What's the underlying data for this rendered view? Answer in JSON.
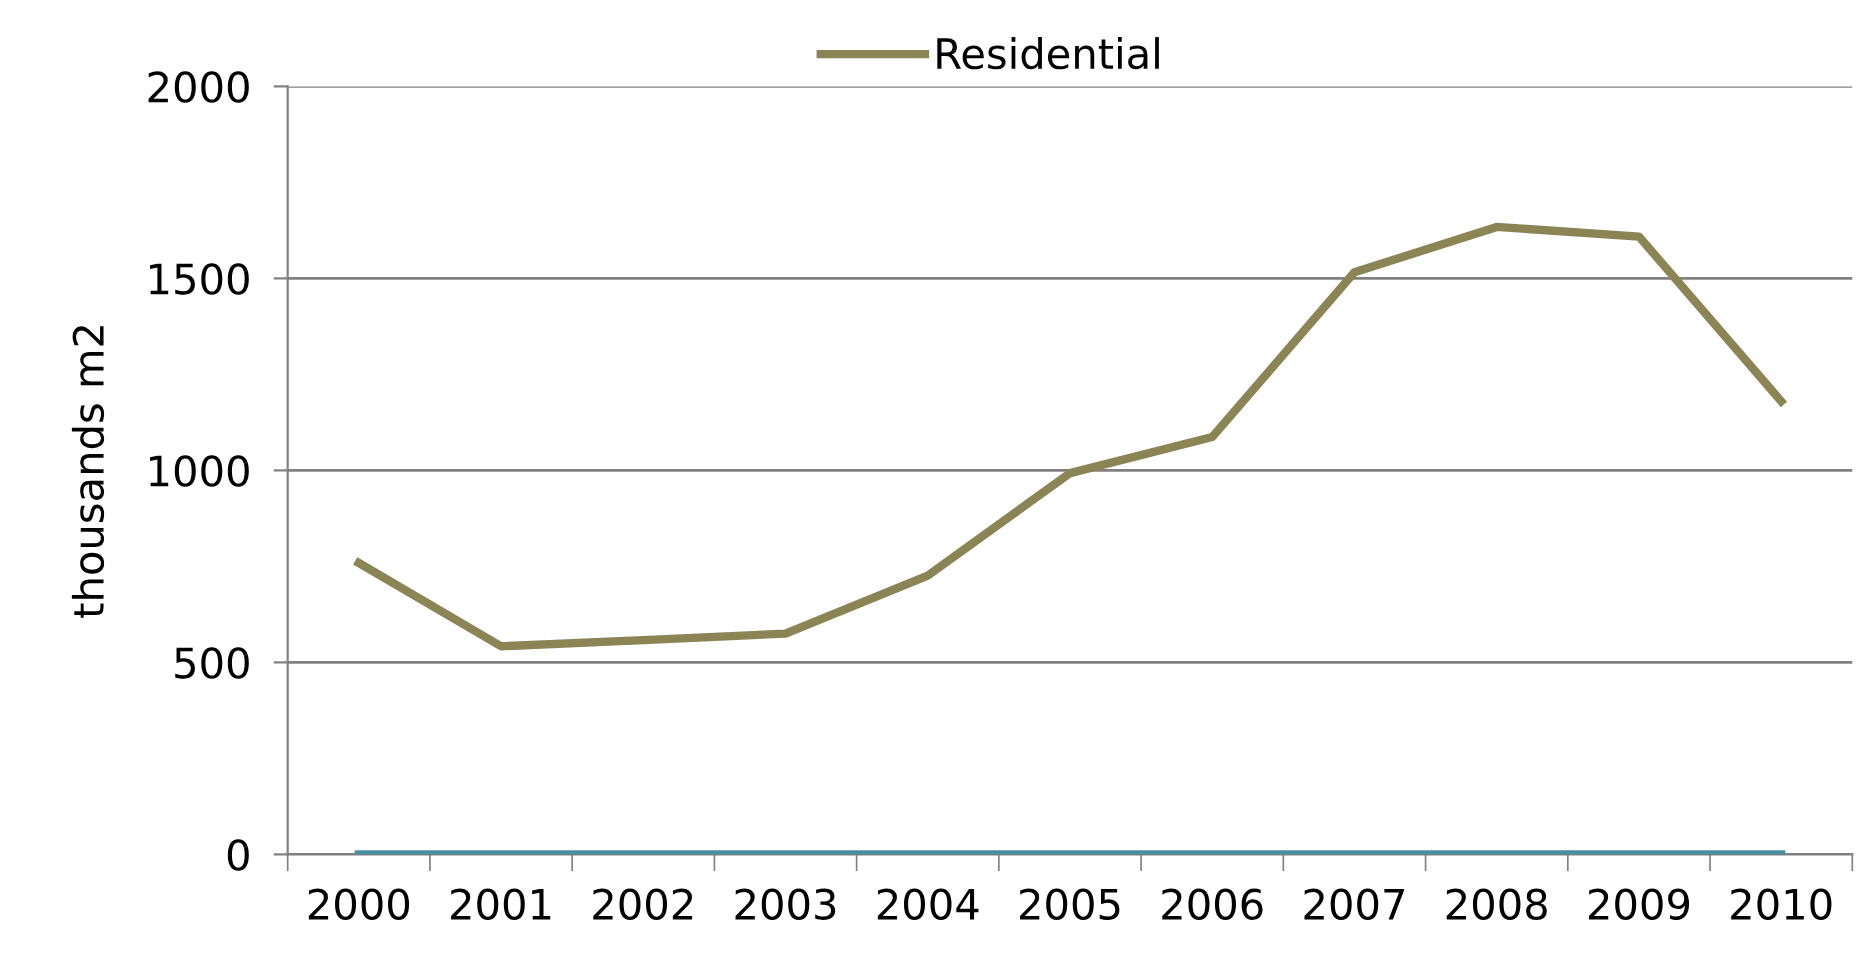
{
  "chart_data": {
    "type": "line",
    "ylabel": "thousands m2",
    "categories": [
      "2000",
      "2001",
      "2002",
      "2003",
      "2004",
      "2005",
      "2006",
      "2007",
      "2008",
      "2009",
      "2010"
    ],
    "series": [
      {
        "name": "Residential",
        "color": "#8b8455",
        "values": [
          759,
          542,
          558,
          575,
          726,
          993,
          1087,
          1516,
          1634,
          1609,
          1180
        ]
      },
      {
        "color": "#4a8ea0",
        "values": [
          0,
          0,
          0,
          0,
          0,
          0,
          0,
          0,
          0,
          0,
          0
        ]
      }
    ],
    "ylim": [
      0,
      2000
    ],
    "yticks": [
      0,
      500,
      1000,
      1500,
      2000
    ],
    "grid": "y",
    "legend": "top",
    "marker": "none",
    "line_style": "solid"
  }
}
